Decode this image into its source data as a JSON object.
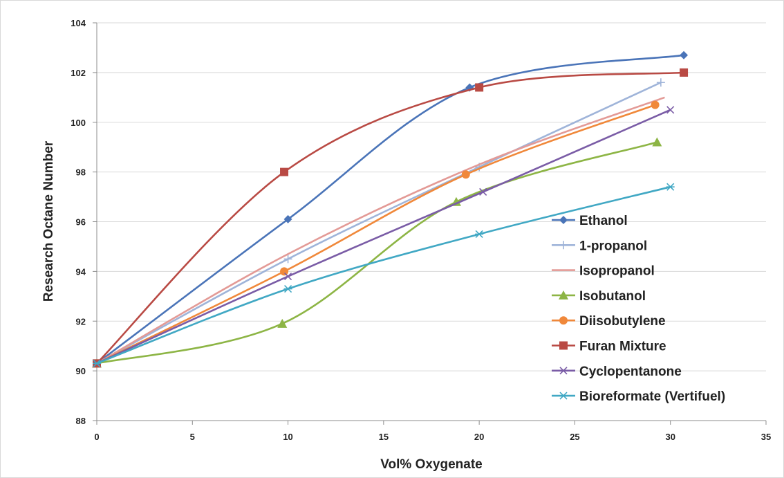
{
  "chart_data": {
    "type": "line",
    "title": "",
    "xlabel": "Vol% Oxygenate",
    "ylabel": "Research Octane Number",
    "xlim": [
      0,
      35
    ],
    "ylim": [
      88,
      104
    ],
    "xticks": [
      0,
      5,
      10,
      15,
      20,
      25,
      30,
      35
    ],
    "yticks": [
      88,
      90,
      92,
      94,
      96,
      98,
      100,
      102,
      104
    ],
    "grid": "horizontal",
    "legend_position": "bottom-right",
    "smooth_lines": true,
    "series": [
      {
        "name": "Ethanol",
        "color": "#4a74b8",
        "marker": "diamond",
        "x": [
          0,
          10,
          19.5,
          30.7
        ],
        "y": [
          90.3,
          96.1,
          101.4,
          102.7
        ]
      },
      {
        "name": "1-propanol",
        "color": "#9fb4d9",
        "marker": "plus",
        "x": [
          0,
          10,
          20,
          29.5
        ],
        "y": [
          90.3,
          94.5,
          98.2,
          101.6
        ]
      },
      {
        "name": "Isopropanol",
        "color": "#e39a96",
        "marker": "none",
        "x": [
          0,
          10,
          20,
          29.7
        ],
        "y": [
          90.3,
          94.7,
          98.3,
          101.0
        ]
      },
      {
        "name": "Isobutanol",
        "color": "#8db545",
        "marker": "triangle",
        "x": [
          0,
          9.7,
          18.8,
          29.3
        ],
        "y": [
          90.3,
          91.9,
          96.8,
          99.2
        ]
      },
      {
        "name": "Diisobutylene",
        "color": "#f0883a",
        "marker": "circle",
        "x": [
          0,
          9.8,
          19.3,
          29.2
        ],
        "y": [
          90.3,
          94.0,
          97.9,
          100.7
        ]
      },
      {
        "name": "Furan Mixture",
        "color": "#b94a44",
        "marker": "square",
        "x": [
          0,
          9.8,
          20,
          30.7
        ],
        "y": [
          90.3,
          98.0,
          101.4,
          102.0
        ]
      },
      {
        "name": "Cyclopentanone",
        "color": "#7a5ca6",
        "marker": "x",
        "x": [
          0,
          10,
          20.2,
          30
        ],
        "y": [
          90.3,
          93.8,
          97.2,
          100.5
        ]
      },
      {
        "name": "Bioreformate (Vertifuel)",
        "color": "#41a8c4",
        "marker": "star",
        "x": [
          0,
          10,
          20,
          30
        ],
        "y": [
          90.3,
          93.3,
          95.5,
          97.4
        ]
      }
    ]
  }
}
